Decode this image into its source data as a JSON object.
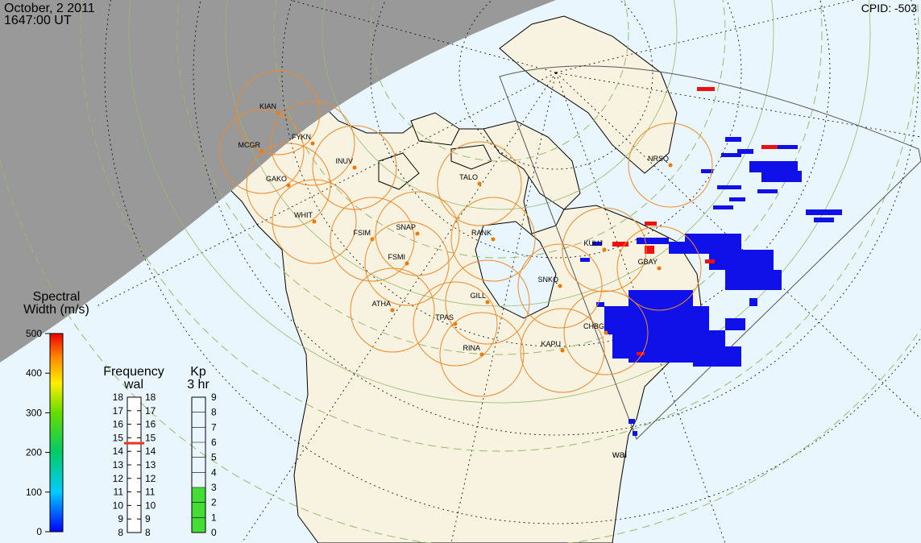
{
  "header": {
    "date": "October, 2 2011",
    "time": "1647:00 UT",
    "cpid": "CPID:  -503"
  },
  "radar": {
    "name": "wal",
    "color_scale": {
      "title_line1": "Spectral",
      "title_line2": "Width (m/s)",
      "ticks": [
        "0",
        "100",
        "200",
        "300",
        "400",
        "500"
      ]
    },
    "frequency": {
      "title": "Frequency",
      "subtitle": "wal",
      "ticks": [
        "8",
        "9",
        "10",
        "11",
        "12",
        "13",
        "14",
        "15",
        "16",
        "17",
        "18"
      ],
      "current_mhz": 14.6
    },
    "kp": {
      "title": "Kp",
      "subtitle": "3 hr",
      "ticks": [
        "0",
        "1",
        "2",
        "3",
        "4",
        "5",
        "6",
        "7",
        "8",
        "9"
      ],
      "value": 3
    }
  },
  "stations": [
    {
      "code": "KIAN"
    },
    {
      "code": "MCGR"
    },
    {
      "code": "FYKN"
    },
    {
      "code": "INUV"
    },
    {
      "code": "GAKO"
    },
    {
      "code": "WHIT"
    },
    {
      "code": "FSIM"
    },
    {
      "code": "SNAP"
    },
    {
      "code": "FSMI"
    },
    {
      "code": "TALO"
    },
    {
      "code": "RANK"
    },
    {
      "code": "KUUJ"
    },
    {
      "code": "GBAY"
    },
    {
      "code": "NRSQ"
    },
    {
      "code": "SNKQ"
    },
    {
      "code": "GILL"
    },
    {
      "code": "ATHA"
    },
    {
      "code": "TPAS"
    },
    {
      "code": "RINA"
    },
    {
      "code": "KAPU"
    },
    {
      "code": "CHBG"
    }
  ],
  "colors": {
    "night": "#999999",
    "ocean": "#eaf6fd",
    "land": "#f7f3e0",
    "station_ring": "#ee8a2a",
    "station_dot": "#ee7700",
    "echo_low": "#1010e8",
    "echo_high": "#ee1010",
    "kp_fill": "#44dd33",
    "freq_marker": "#ee3322"
  }
}
